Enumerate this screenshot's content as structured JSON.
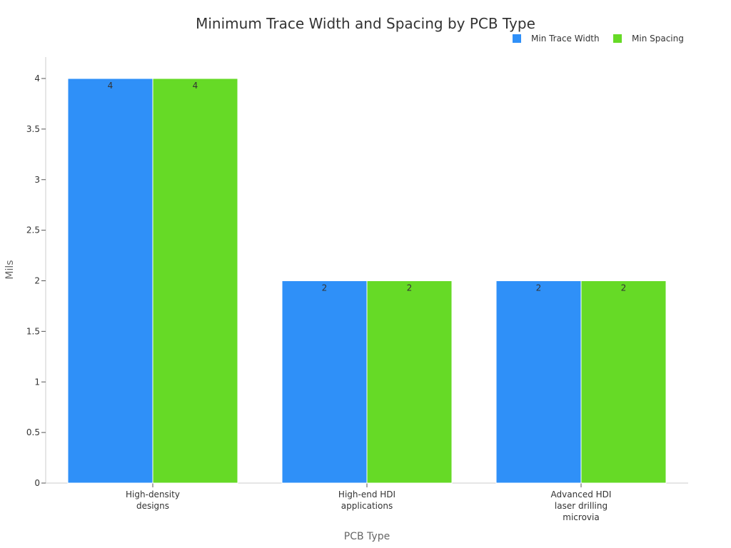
{
  "chart_data": {
    "type": "bar",
    "title": "Minimum Trace Width and Spacing by PCB Type",
    "xlabel": "PCB Type",
    "ylabel": "Mils",
    "categories": [
      [
        "High-density",
        "designs"
      ],
      [
        "High-end HDI",
        "applications"
      ],
      [
        "Advanced HDI",
        "laser drilling",
        "microvia"
      ]
    ],
    "series": [
      {
        "name": "Min Trace Width",
        "color": "#2f90f8",
        "values": [
          4,
          2,
          2
        ]
      },
      {
        "name": "Min Spacing",
        "color": "#66da26",
        "values": [
          4,
          2,
          2
        ]
      }
    ],
    "ylim": [
      0,
      4
    ],
    "yticks": [
      0,
      0.5,
      1,
      1.5,
      2,
      2.5,
      3,
      3.5,
      4
    ],
    "grid": false,
    "legend_position": "top-right",
    "data_labels": true
  }
}
